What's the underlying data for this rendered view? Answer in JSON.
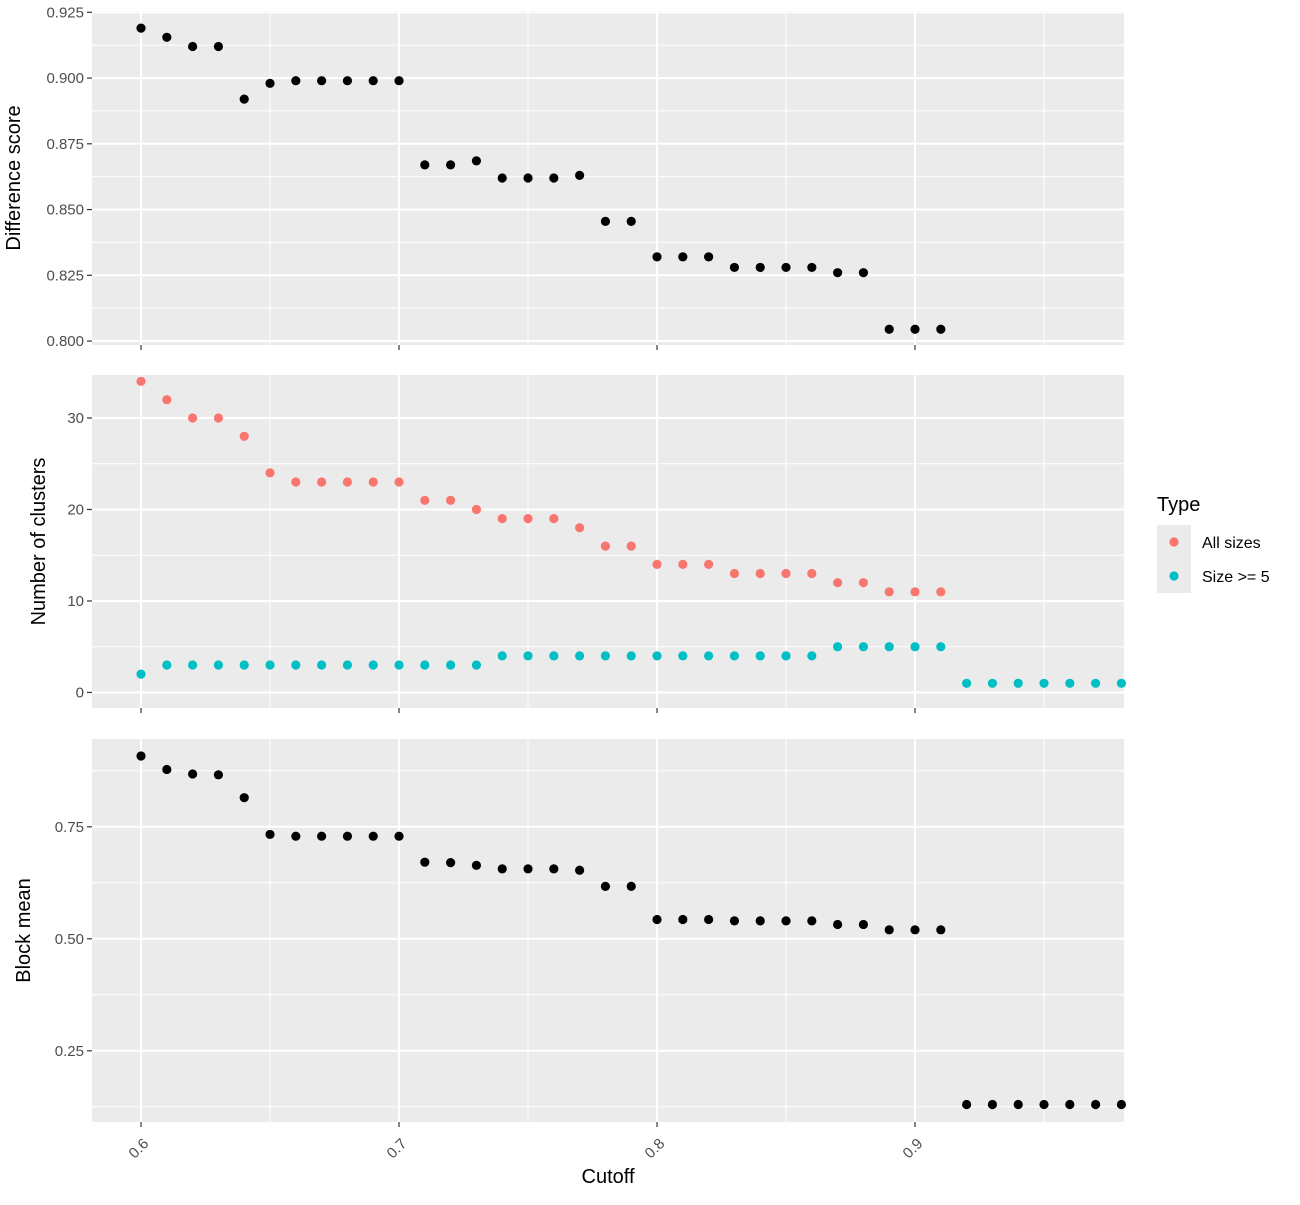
{
  "chart_data": {
    "type": "scatter",
    "xlabel": "Cutoff",
    "x_ticks": [
      0.6,
      0.7,
      0.8,
      0.9
    ],
    "x_tick_labels": [
      "0.6",
      "0.7",
      "0.8",
      "0.9"
    ],
    "xlim": [
      0.581,
      0.981
    ],
    "grid": true,
    "legend": {
      "title": "Type",
      "position": "right",
      "entries": [
        {
          "label": "All sizes",
          "color": "#F8766D"
        },
        {
          "label": "Size >= 5",
          "color": "#00BFC4"
        }
      ]
    },
    "panels": [
      {
        "ylabel": "Difference score",
        "ylim": [
          0.7985,
          0.9255
        ],
        "y_ticks": [
          0.8,
          0.825,
          0.85,
          0.875,
          0.9,
          0.925
        ],
        "y_tick_labels": [
          "0.800",
          "0.825",
          "0.850",
          "0.875",
          "0.900",
          "0.925"
        ],
        "series": [
          {
            "color": "#000000",
            "x": [
              0.6,
              0.61,
              0.62,
              0.63,
              0.64,
              0.65,
              0.66,
              0.67,
              0.68,
              0.69,
              0.7,
              0.71,
              0.72,
              0.73,
              0.74,
              0.75,
              0.76,
              0.77,
              0.78,
              0.79,
              0.8,
              0.81,
              0.82,
              0.83,
              0.84,
              0.85,
              0.86,
              0.87,
              0.88,
              0.89,
              0.9,
              0.91
            ],
            "y": [
              0.919,
              0.9155,
              0.912,
              0.912,
              0.892,
              0.898,
              0.899,
              0.899,
              0.899,
              0.899,
              0.899,
              0.867,
              0.867,
              0.8685,
              0.862,
              0.862,
              0.862,
              0.863,
              0.8455,
              0.8455,
              0.832,
              0.832,
              0.832,
              0.828,
              0.828,
              0.828,
              0.828,
              0.826,
              0.826,
              0.8045,
              0.8045,
              0.8045
            ]
          }
        ]
      },
      {
        "ylabel": "Number of clusters",
        "ylim": [
          -1.7,
          34.7
        ],
        "y_ticks": [
          0,
          10,
          20,
          30
        ],
        "y_tick_labels": [
          "0",
          "10",
          "20",
          "30"
        ],
        "series": [
          {
            "name": "All sizes",
            "color": "#F8766D",
            "x": [
              0.6,
              0.61,
              0.62,
              0.63,
              0.64,
              0.65,
              0.66,
              0.67,
              0.68,
              0.69,
              0.7,
              0.71,
              0.72,
              0.73,
              0.74,
              0.75,
              0.76,
              0.77,
              0.78,
              0.79,
              0.8,
              0.81,
              0.82,
              0.83,
              0.84,
              0.85,
              0.86,
              0.87,
              0.88,
              0.89,
              0.9,
              0.91
            ],
            "y": [
              34,
              32,
              30,
              30,
              28,
              24,
              23,
              23,
              23,
              23,
              23,
              21,
              21,
              20,
              19,
              19,
              19,
              18,
              16,
              16,
              14,
              14,
              14,
              13,
              13,
              13,
              13,
              12,
              12,
              11,
              11,
              11
            ]
          },
          {
            "name": "Size >= 5",
            "color": "#00BFC4",
            "x": [
              0.6,
              0.61,
              0.62,
              0.63,
              0.64,
              0.65,
              0.66,
              0.67,
              0.68,
              0.69,
              0.7,
              0.71,
              0.72,
              0.73,
              0.74,
              0.75,
              0.76,
              0.77,
              0.78,
              0.79,
              0.8,
              0.81,
              0.82,
              0.83,
              0.84,
              0.85,
              0.86,
              0.87,
              0.88,
              0.89,
              0.9,
              0.91,
              0.92,
              0.93,
              0.94,
              0.95,
              0.96,
              0.97,
              0.98
            ],
            "y": [
              2,
              3,
              3,
              3,
              3,
              3,
              3,
              3,
              3,
              3,
              3,
              3,
              3,
              3,
              4,
              4,
              4,
              4,
              4,
              4,
              4,
              4,
              4,
              4,
              4,
              4,
              4,
              5,
              5,
              5,
              5,
              5,
              1,
              1,
              1,
              1,
              1,
              1,
              1
            ]
          }
        ]
      },
      {
        "ylabel": "Block mean",
        "ylim": [
          0.091,
          0.946
        ],
        "y_ticks": [
          0.25,
          0.5,
          0.75
        ],
        "y_tick_labels": [
          "0.25",
          "0.50",
          "0.75"
        ],
        "series": [
          {
            "color": "#000000",
            "x": [
              0.6,
              0.61,
              0.62,
              0.63,
              0.64,
              0.65,
              0.66,
              0.67,
              0.68,
              0.69,
              0.7,
              0.71,
              0.72,
              0.73,
              0.74,
              0.75,
              0.76,
              0.77,
              0.78,
              0.79,
              0.8,
              0.81,
              0.82,
              0.83,
              0.84,
              0.85,
              0.86,
              0.87,
              0.88,
              0.89,
              0.9,
              0.91,
              0.92,
              0.93,
              0.94,
              0.95,
              0.96,
              0.97,
              0.98
            ],
            "y": [
              0.908,
              0.878,
              0.868,
              0.866,
              0.815,
              0.733,
              0.729,
              0.729,
              0.729,
              0.729,
              0.729,
              0.671,
              0.67,
              0.664,
              0.656,
              0.656,
              0.656,
              0.653,
              0.617,
              0.617,
              0.543,
              0.543,
              0.543,
              0.54,
              0.54,
              0.54,
              0.54,
              0.532,
              0.532,
              0.52,
              0.52,
              0.52,
              0.13,
              0.13,
              0.13,
              0.13,
              0.13,
              0.13,
              0.13
            ]
          }
        ]
      }
    ]
  }
}
